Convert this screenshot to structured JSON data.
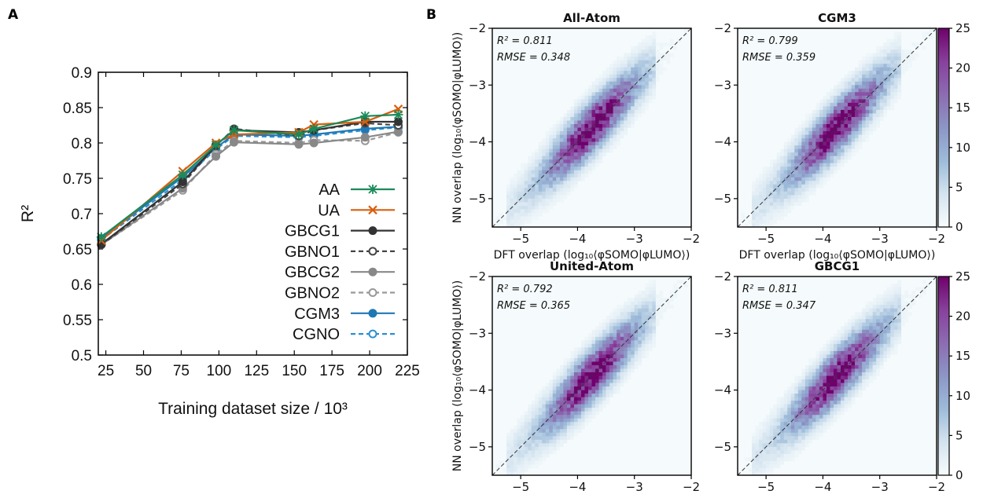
{
  "panelA_label": "A",
  "panelB_label": "B",
  "chart_data": [
    {
      "type": "line",
      "xlabel": "Training dataset size / 10³",
      "ylabel": "R²",
      "xlim": [
        20,
        225
      ],
      "ylim": [
        0.5,
        0.9
      ],
      "xticks": [
        "25",
        "50",
        "75",
        "100",
        "125",
        "150",
        "175",
        "200",
        "225"
      ],
      "yticks": [
        "0.5",
        "0.55",
        "0.6",
        "0.65",
        "0.7",
        "0.75",
        "0.8",
        "0.85",
        "0.9"
      ],
      "legend_position": "lower-right",
      "x": [
        22,
        76,
        98,
        110,
        153,
        163,
        197,
        219
      ],
      "series": [
        {
          "name": "AA",
          "color": "#1a8a5a",
          "marker": "x-star",
          "dash": false,
          "values": [
            0.667,
            0.755,
            0.797,
            0.818,
            0.812,
            0.82,
            0.838,
            0.84
          ]
        },
        {
          "name": "UA",
          "color": "#d95f0e",
          "marker": "x",
          "dash": false,
          "values": [
            0.662,
            0.76,
            0.8,
            0.812,
            0.815,
            0.826,
            0.83,
            0.848
          ]
        },
        {
          "name": "GBCG1",
          "color": "#333333",
          "marker": "circle",
          "dash": false,
          "values": [
            0.657,
            0.745,
            0.797,
            0.818,
            0.815,
            0.818,
            0.83,
            0.83
          ]
        },
        {
          "name": "GBNO1",
          "color": "#444444",
          "marker": "open-circle",
          "dash": true,
          "values": [
            0.656,
            0.742,
            0.796,
            0.82,
            0.81,
            0.818,
            0.828,
            0.825
          ]
        },
        {
          "name": "GBCG2",
          "color": "#888888",
          "marker": "circle",
          "dash": false,
          "values": [
            0.656,
            0.736,
            0.781,
            0.801,
            0.798,
            0.8,
            0.808,
            0.816
          ]
        },
        {
          "name": "GBNO2",
          "color": "#999999",
          "marker": "open-circle",
          "dash": true,
          "values": [
            0.656,
            0.733,
            0.784,
            0.803,
            0.8,
            0.804,
            0.803,
            0.815
          ]
        },
        {
          "name": "CGM3",
          "color": "#1f78b4",
          "marker": "circle",
          "dash": false,
          "values": [
            0.665,
            0.752,
            0.793,
            0.812,
            0.81,
            0.812,
            0.82,
            0.823
          ]
        },
        {
          "name": "CGNO",
          "color": "#2c8fd0",
          "marker": "open-circle",
          "dash": true,
          "values": [
            0.663,
            0.748,
            0.791,
            0.81,
            0.808,
            0.81,
            0.818,
            0.822
          ]
        }
      ]
    },
    {
      "type": "heatmap",
      "title": "All-Atom",
      "stats": [
        "R² = 0.811",
        "RMSE = 0.348"
      ],
      "xlabel": "DFT overlap (log₁₀⟨φSOMO|φLUMO⟩)",
      "ylabel": "NN overlap (log₁₀⟨φSOMO|φLUMO⟩)",
      "xlim": [
        -5.5,
        -2
      ],
      "ylim": [
        -5.5,
        -2
      ],
      "xticks": [
        "−5",
        "−4",
        "−3",
        "−2"
      ],
      "yticks": [
        "−5",
        "−4",
        "−3",
        "−2"
      ]
    },
    {
      "type": "heatmap",
      "title": "CGM3",
      "stats": [
        "R² = 0.799",
        "RMSE = 0.359"
      ],
      "xlabel": "DFT overlap (log₁₀⟨φSOMO|φLUMO⟩)",
      "ylabel": "",
      "xlim": [
        -5.5,
        -2
      ],
      "ylim": [
        -5.5,
        -2
      ],
      "xticks": [
        "−5",
        "−4",
        "−3",
        "−2"
      ],
      "yticks": [
        "−5",
        "−4",
        "−3",
        "−2"
      ]
    },
    {
      "type": "heatmap",
      "title": "United-Atom",
      "stats": [
        "R² = 0.792",
        "RMSE = 0.365"
      ],
      "xlabel": "DFT overlap (log₁₀⟨φSOMO|φLUMO⟩)",
      "ylabel": "NN overlap (log₁₀⟨φSOMO|φLUMO⟩)",
      "xlim": [
        -5.5,
        -2
      ],
      "ylim": [
        -5.5,
        -2
      ],
      "xticks": [
        "−5",
        "−4",
        "−3",
        "−2"
      ],
      "yticks": [
        "−5",
        "−4",
        "−3",
        "−2"
      ]
    },
    {
      "type": "heatmap",
      "title": "GBCG1",
      "stats": [
        "R² = 0.811",
        "RMSE = 0.347"
      ],
      "xlabel": "DFT overlap (log₁₀⟨φSOMO|φLUMO⟩)",
      "ylabel": "",
      "xlim": [
        -5.5,
        -2
      ],
      "ylim": [
        -5.5,
        -2
      ],
      "xticks": [
        "−5",
        "−4",
        "−3",
        "−2"
      ],
      "yticks": [
        "−5",
        "−4",
        "−3",
        "−2"
      ]
    }
  ],
  "colorbar": {
    "ticks": [
      "0",
      "5",
      "10",
      "15",
      "20",
      "25"
    ],
    "range": [
      0,
      25
    ],
    "colors": [
      "#f7fcfd",
      "#d3e3ef",
      "#9ebcda",
      "#8c96c6",
      "#8c6bb1",
      "#88419d",
      "#6e016b"
    ]
  }
}
